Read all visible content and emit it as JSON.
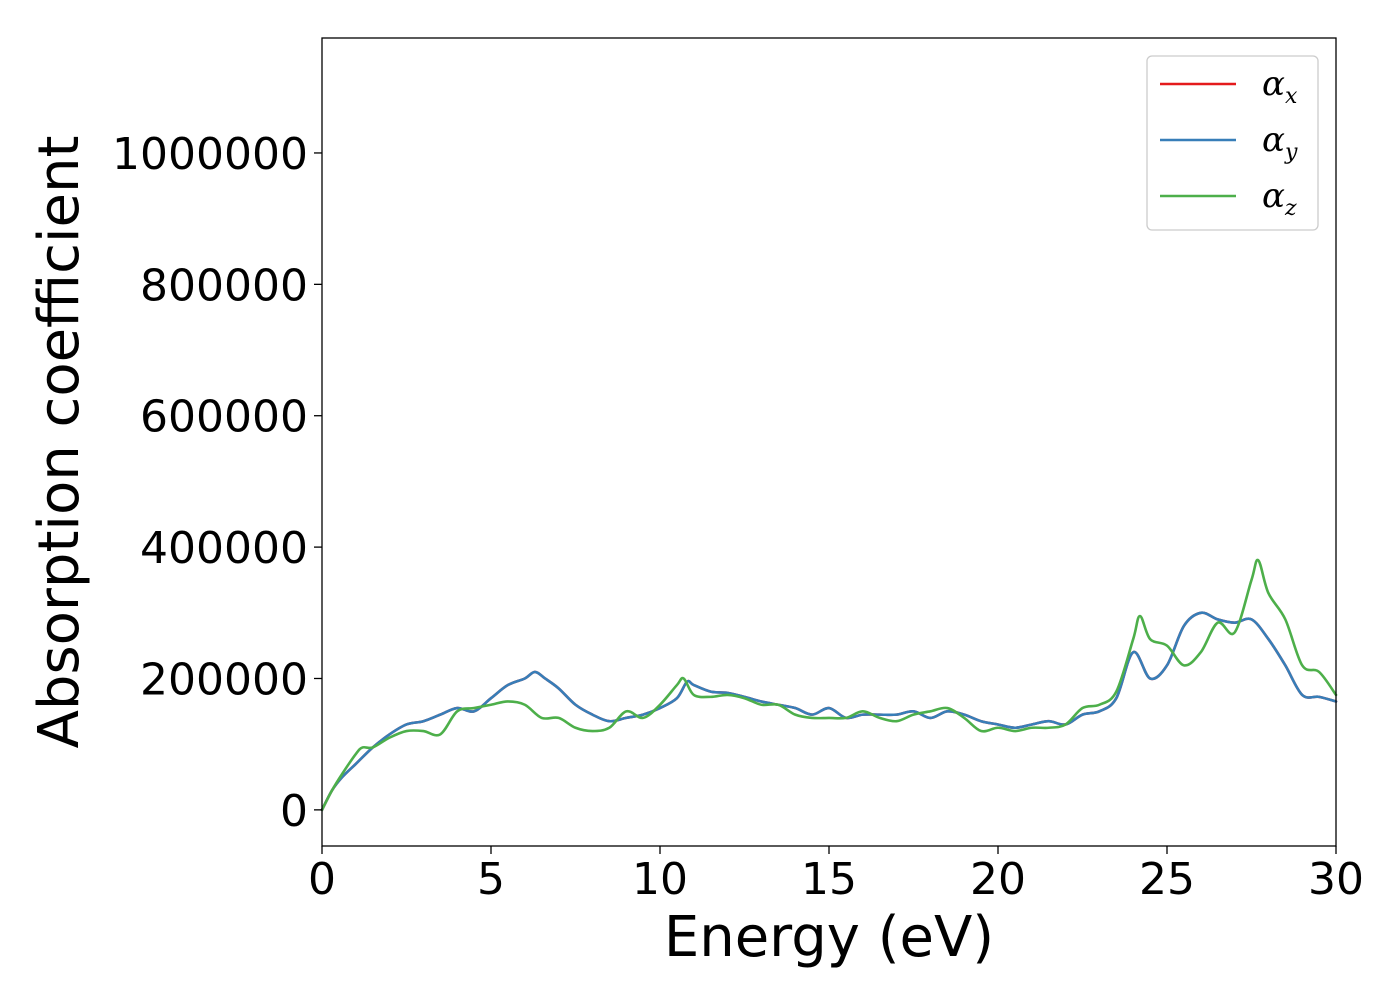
{
  "chart_data": {
    "type": "line",
    "title": "",
    "xlabel": "Energy (eV)",
    "ylabel": "Absorption coefficient",
    "xlim": [
      0,
      30
    ],
    "ylim": [
      -55000,
      1175000
    ],
    "xticks": [
      0,
      5,
      10,
      15,
      20,
      25,
      30
    ],
    "yticks": [
      0,
      200000,
      400000,
      600000,
      800000,
      1000000
    ],
    "grid": false,
    "legend_position": "top-right",
    "series": [
      {
        "name": "α_x",
        "legend_main": "α",
        "legend_sub": "x",
        "color": "#e41a1c",
        "x": [
          0,
          0.3,
          0.6,
          1.0,
          1.5,
          2.0,
          2.5,
          3.0,
          3.5,
          4.0,
          4.5,
          5.0,
          5.5,
          6.0,
          6.3,
          6.6,
          7.0,
          7.5,
          8.0,
          8.5,
          9.0,
          9.5,
          10.0,
          10.5,
          10.8,
          11.0,
          11.5,
          12.0,
          12.5,
          13.0,
          13.5,
          14.0,
          14.5,
          15.0,
          15.5,
          16.0,
          16.5,
          17.0,
          17.5,
          18.0,
          18.5,
          19.0,
          19.5,
          20.0,
          20.5,
          21.0,
          21.5,
          22.0,
          22.5,
          23.0,
          23.5,
          24.0,
          24.5,
          25.0,
          25.5,
          26.0,
          26.5,
          27.0,
          27.5,
          28.0,
          28.5,
          29.0,
          29.5,
          30.0
        ],
        "y": [
          0,
          30000,
          50000,
          70000,
          95000,
          115000,
          130000,
          135000,
          145000,
          155000,
          150000,
          170000,
          190000,
          200000,
          210000,
          200000,
          185000,
          160000,
          145000,
          135000,
          140000,
          145000,
          155000,
          170000,
          195000,
          190000,
          180000,
          178000,
          172000,
          165000,
          160000,
          155000,
          145000,
          155000,
          140000,
          145000,
          145000,
          145000,
          150000,
          140000,
          150000,
          145000,
          135000,
          130000,
          125000,
          130000,
          135000,
          130000,
          145000,
          150000,
          170000,
          240000,
          200000,
          220000,
          280000,
          300000,
          290000,
          285000,
          290000,
          260000,
          220000,
          175000,
          172000,
          165000
        ]
      },
      {
        "name": "α_y",
        "legend_main": "α",
        "legend_sub": "y",
        "color": "#377eb8",
        "x": [
          0,
          0.3,
          0.6,
          1.0,
          1.5,
          2.0,
          2.5,
          3.0,
          3.5,
          4.0,
          4.5,
          5.0,
          5.5,
          6.0,
          6.3,
          6.6,
          7.0,
          7.5,
          8.0,
          8.5,
          9.0,
          9.5,
          10.0,
          10.5,
          10.8,
          11.0,
          11.5,
          12.0,
          12.5,
          13.0,
          13.5,
          14.0,
          14.5,
          15.0,
          15.5,
          16.0,
          16.5,
          17.0,
          17.5,
          18.0,
          18.5,
          19.0,
          19.5,
          20.0,
          20.5,
          21.0,
          21.5,
          22.0,
          22.5,
          23.0,
          23.5,
          24.0,
          24.5,
          25.0,
          25.5,
          26.0,
          26.5,
          27.0,
          27.5,
          28.0,
          28.5,
          29.0,
          29.5,
          30.0
        ],
        "y": [
          0,
          30000,
          50000,
          70000,
          95000,
          115000,
          130000,
          135000,
          145000,
          155000,
          150000,
          170000,
          190000,
          200000,
          210000,
          200000,
          185000,
          160000,
          145000,
          135000,
          140000,
          145000,
          155000,
          170000,
          195000,
          190000,
          180000,
          178000,
          172000,
          165000,
          160000,
          155000,
          145000,
          155000,
          140000,
          145000,
          145000,
          145000,
          150000,
          140000,
          150000,
          145000,
          135000,
          130000,
          125000,
          130000,
          135000,
          130000,
          145000,
          150000,
          170000,
          240000,
          200000,
          220000,
          280000,
          300000,
          290000,
          285000,
          290000,
          260000,
          220000,
          175000,
          172000,
          165000
        ]
      },
      {
        "name": "α_z",
        "legend_main": "α",
        "legend_sub": "z",
        "color": "#4daf4a",
        "x": [
          0,
          0.3,
          0.6,
          1.0,
          1.2,
          1.5,
          2.0,
          2.5,
          3.0,
          3.5,
          4.0,
          4.5,
          5.0,
          5.5,
          6.0,
          6.5,
          7.0,
          7.5,
          8.0,
          8.5,
          9.0,
          9.5,
          10.0,
          10.5,
          10.7,
          11.0,
          11.5,
          12.0,
          12.5,
          13.0,
          13.5,
          14.0,
          14.5,
          15.0,
          15.5,
          16.0,
          16.5,
          17.0,
          17.5,
          18.0,
          18.5,
          19.0,
          19.5,
          20.0,
          20.5,
          21.0,
          21.5,
          22.0,
          22.5,
          23.0,
          23.5,
          24.0,
          24.2,
          24.5,
          25.0,
          25.5,
          26.0,
          26.5,
          27.0,
          27.5,
          27.7,
          28.0,
          28.5,
          29.0,
          29.5,
          30.0
        ],
        "y": [
          0,
          30000,
          55000,
          85000,
          95000,
          95000,
          110000,
          120000,
          120000,
          115000,
          150000,
          155000,
          160000,
          165000,
          160000,
          140000,
          140000,
          125000,
          120000,
          125000,
          150000,
          140000,
          160000,
          190000,
          200000,
          175000,
          172000,
          175000,
          170000,
          160000,
          160000,
          145000,
          140000,
          140000,
          140000,
          150000,
          140000,
          135000,
          145000,
          150000,
          155000,
          140000,
          120000,
          125000,
          120000,
          125000,
          125000,
          130000,
          155000,
          160000,
          180000,
          260000,
          295000,
          260000,
          250000,
          220000,
          240000,
          285000,
          270000,
          350000,
          380000,
          330000,
          290000,
          220000,
          210000,
          175000
        ]
      }
    ]
  }
}
